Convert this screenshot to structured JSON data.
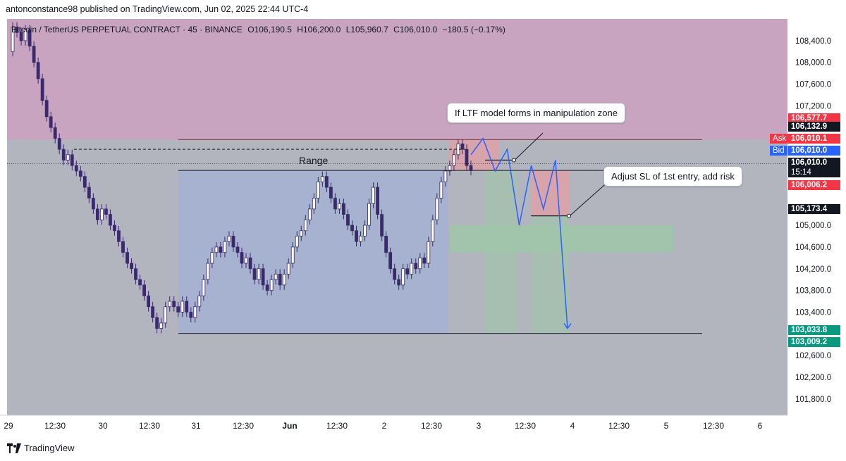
{
  "header": {
    "published_by": "antonconstance98 published on TradingView.com, Jun 02, 2025 22:44 UTC-4"
  },
  "legend": {
    "symbol": "Bitcoin / TetherUS PERPETUAL CONTRACT · 45 · BINANCE",
    "open": "O106,190.5",
    "high": "H106,200.0",
    "low": "L105,960.7",
    "close": "C106,010.0",
    "change": "−180.5 (−0.17%)"
  },
  "chart_data": {
    "type": "candlestick",
    "symbol": "BTCUSDT.P",
    "timeframe": "45",
    "exchange": "BINANCE",
    "ylim": [
      101500,
      108800
    ],
    "y_ticks": [
      "108,400.0",
      "108,000.0",
      "107,600.0",
      "107,200.0",
      "105,000.0",
      "104,600.0",
      "104,200.0",
      "103,800.0",
      "103,400.0",
      "102,600.0",
      "102,200.0",
      "101,800.0"
    ],
    "y_tick_values": [
      108400,
      108000,
      107600,
      107200,
      105000,
      104600,
      104200,
      103800,
      103400,
      102600,
      102200,
      101800
    ],
    "x_ticks": [
      "29",
      "12:30",
      "30",
      "12:30",
      "31",
      "12:30",
      "Jun",
      "12:30",
      "2",
      "12:30",
      "3",
      "12:30",
      "4",
      "12:30",
      "5",
      "12:30",
      "6"
    ],
    "price_path": [
      108200,
      108650,
      108550,
      108400,
      108600,
      108300,
      108000,
      107700,
      107300,
      107000,
      106800,
      106600,
      106400,
      106200,
      106300,
      106100,
      106000,
      105900,
      105700,
      105500,
      105300,
      105100,
      105300,
      105200,
      105000,
      104900,
      104700,
      104500,
      104300,
      104200,
      104000,
      103900,
      103700,
      103500,
      103300,
      103100,
      103200,
      103500,
      103600,
      103500,
      103400,
      103600,
      103400,
      103300,
      103500,
      103700,
      104000,
      104300,
      104500,
      104600,
      104500,
      104700,
      104800,
      104600,
      104500,
      104300,
      104400,
      104200,
      104000,
      104200,
      103900,
      103800,
      104000,
      104100,
      103900,
      104100,
      104300,
      104600,
      104800,
      104900,
      105100,
      105300,
      105500,
      105800,
      105900,
      105700,
      105500,
      105300,
      105400,
      105200,
      105000,
      104900,
      104700,
      104800,
      105000,
      105400,
      105700,
      105200,
      104800,
      104500,
      104200,
      104000,
      103900,
      104200,
      104100,
      104300,
      104200,
      104400,
      104300,
      104700,
      105100,
      105500,
      105800,
      106000,
      106100,
      106300,
      106500,
      106400,
      106100,
      106010
    ],
    "zones": {
      "manipulation_zone_top": 108800,
      "manipulation_zone_bottom": 106577.7,
      "range_high": 106577.7,
      "range_mid": 106010.0,
      "range_low": 103009.2
    },
    "price_tags": [
      {
        "label": "106,577.7",
        "value": 106577.7,
        "color": "#f23645"
      },
      {
        "label": "106,132.9",
        "value": 106132.9,
        "color": "#131722"
      },
      {
        "label": "106,010.1",
        "value": 106010.1,
        "color": "#f23645",
        "prefix": "Ask"
      },
      {
        "label": "106,010.0",
        "value": 106010.0,
        "color": "#2962ff",
        "prefix": "Bid"
      },
      {
        "label": "106,010.0",
        "value": 106010.0,
        "color": "#131722",
        "sub": "15:14"
      },
      {
        "label": "106,006.2",
        "value": 106006.2,
        "color": "#f23645"
      },
      {
        "label": "105,173.4",
        "value": 105173.4,
        "color": "#131722"
      },
      {
        "label": "103,033.8",
        "value": 103033.8,
        "color": "#089981"
      },
      {
        "label": "103,009.2",
        "value": 103009.2,
        "color": "#089981"
      }
    ],
    "annotations": {
      "range_label": "Range",
      "callout_ltf": "If LTF model forms in manipulation zone",
      "callout_sl": "Adjust SL of 1st entry, add risk"
    },
    "projection_path": [
      106300,
      106600,
      106000,
      106400,
      105000,
      106100,
      105300,
      106200,
      103100
    ]
  },
  "colors": {
    "background": "#b2b5be",
    "manipulation_zone": "#c9a4c0",
    "range_box": "#a6b2cf",
    "stop_zone": "#e0a0a8",
    "target_zone": "#9fc7a9",
    "candle": "#3b2a6b",
    "projection": "#2962ff"
  },
  "footer": {
    "brand": "TradingView"
  }
}
